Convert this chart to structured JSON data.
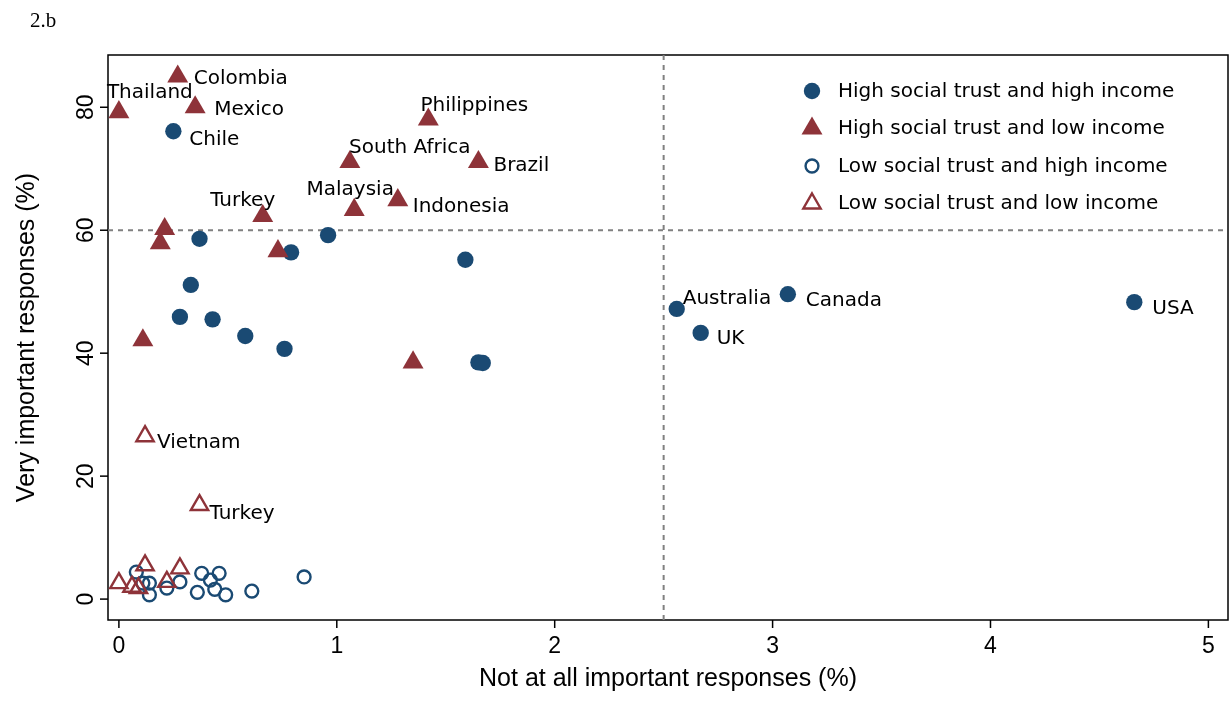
{
  "chart_data": {
    "type": "scatter",
    "title": "2.b",
    "xlabel": "Not at all important responses (%)",
    "ylabel": "Very important responses (%)",
    "xlim": [
      -0.05,
      5.09
    ],
    "ylim": [
      -3.4,
      88.5
    ],
    "xticks": [
      0,
      1,
      2,
      3,
      4,
      5
    ],
    "yticks": [
      0,
      20,
      40,
      60,
      80
    ],
    "grid": false,
    "legend": "top right",
    "series": [
      {
        "name": "High social trust and high income",
        "color": "#1a4a73",
        "marker": "circle",
        "x": [
          0.25,
          0.37,
          0.79,
          0.96,
          0.33,
          0.28,
          0.43,
          0.58,
          0.76,
          1.59,
          1.65,
          1.67,
          2.56,
          3.07,
          2.67,
          4.66
        ],
        "values": [
          76.1,
          58.6,
          56.4,
          59.2,
          51.1,
          45.9,
          45.5,
          42.8,
          40.7,
          55.2,
          38.5,
          38.4,
          47.2,
          49.6,
          43.3,
          48.3
        ]
      },
      {
        "name": "High social trust and low income",
        "color": "#8e3339",
        "marker": "triangle",
        "x": [
          0.27,
          0.0,
          0.35,
          1.42,
          1.06,
          1.65,
          0.66,
          1.08,
          1.28,
          0.21,
          0.19,
          0.73,
          0.11,
          1.35
        ],
        "values": [
          85.0,
          79.2,
          80.0,
          78.0,
          71.1,
          71.1,
          62.3,
          63.3,
          64.9,
          60.2,
          57.9,
          56.6,
          42.1,
          38.5
        ]
      },
      {
        "name": "Low social trust and high income",
        "color": "#1a4a73",
        "marker": "circle-open",
        "x": [
          0.08,
          0.14,
          0.14,
          0.22,
          0.28,
          0.38,
          0.36,
          0.42,
          0.46,
          0.44,
          0.49,
          0.61,
          0.85,
          0.11
        ],
        "values": [
          4.4,
          2.6,
          0.7,
          1.8,
          2.8,
          4.2,
          1.1,
          3.1,
          4.2,
          1.6,
          0.7,
          1.3,
          3.6,
          2.6
        ]
      },
      {
        "name": "Low social trust and low income",
        "color": "#8e3339",
        "marker": "triangle-open",
        "x": [
          0.12,
          0.37,
          0.0,
          0.12,
          0.28,
          0.22,
          0.06,
          0.09
        ],
        "values": [
          26.5,
          15.3,
          2.6,
          5.5,
          5.0,
          2.8,
          2.0,
          1.8
        ]
      }
    ],
    "ref_lines": [
      {
        "axis": "x",
        "value": 2.5,
        "color": "#808080",
        "line_style": "dashed"
      },
      {
        "axis": "y",
        "value": 60,
        "color": "#808080",
        "line_style": "dashed"
      }
    ],
    "annotations": [
      {
        "text": "Colombia",
        "x": 0.27,
        "y": 85.0
      },
      {
        "text": "Thailand",
        "x": 0.0,
        "y": 79.2
      },
      {
        "text": "Mexico",
        "x": 0.35,
        "y": 80.0
      },
      {
        "text": "Chile",
        "x": 0.25,
        "y": 76.1
      },
      {
        "text": "Philippines",
        "x": 1.42,
        "y": 78.0
      },
      {
        "text": "South Africa",
        "x": 1.06,
        "y": 71.1
      },
      {
        "text": "Brazil",
        "x": 1.65,
        "y": 71.1
      },
      {
        "text": "Turkey",
        "x": 0.66,
        "y": 62.3
      },
      {
        "text": "Malaysia",
        "x": 1.08,
        "y": 63.3
      },
      {
        "text": "Indonesia",
        "x": 1.28,
        "y": 64.9
      },
      {
        "text": "Australia",
        "x": 2.56,
        "y": 47.2
      },
      {
        "text": "Canada",
        "x": 3.07,
        "y": 49.6
      },
      {
        "text": "UK",
        "x": 2.67,
        "y": 43.3
      },
      {
        "text": "USA",
        "x": 4.66,
        "y": 48.3
      },
      {
        "text": "Vietnam",
        "x": 0.12,
        "y": 26.5
      },
      {
        "text": "Turkey",
        "x": 0.37,
        "y": 15.3
      }
    ]
  }
}
